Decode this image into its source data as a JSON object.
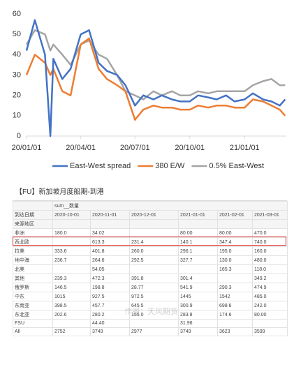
{
  "chart_data": {
    "type": "line",
    "x": [
      "2020-01-01",
      "2020-01-15",
      "2020-02-01",
      "2020-02-10",
      "2020-02-15",
      "2020-03-01",
      "2020-03-15",
      "2020-04-01",
      "2020-04-15",
      "2020-05-01",
      "2020-05-15",
      "2020-06-01",
      "2020-06-15",
      "2020-07-01",
      "2020-07-15",
      "2020-08-01",
      "2020-08-15",
      "2020-09-01",
      "2020-09-15",
      "2020-10-01",
      "2020-10-15",
      "2020-11-01",
      "2020-11-15",
      "2020-12-01",
      "2020-12-15",
      "2021-01-01",
      "2021-01-15",
      "2021-02-01",
      "2021-02-15",
      "2021-03-01",
      "2021-03-10"
    ],
    "series": [
      {
        "name": "East-West spread",
        "color": "#4472c4",
        "values": [
          42,
          57,
          40,
          0,
          38,
          28,
          33,
          50,
          52,
          36,
          32,
          30,
          25,
          15,
          20,
          18,
          20,
          18,
          17,
          17,
          20,
          19,
          18,
          20,
          17,
          18,
          21,
          18,
          17,
          15,
          18
        ]
      },
      {
        "name": "380 E/W",
        "color": "#ed7d31",
        "values": [
          30,
          40,
          36,
          30,
          33,
          22,
          20,
          45,
          48,
          33,
          28,
          25,
          22,
          8,
          13,
          15,
          14,
          14,
          13,
          13,
          15,
          14,
          15,
          15,
          14,
          14,
          18,
          17,
          15,
          13,
          10
        ]
      },
      {
        "name": "0.5% East-West",
        "color": "#a5a5a5",
        "values": [
          45,
          52,
          50,
          42,
          45,
          40,
          35,
          45,
          47,
          40,
          38,
          30,
          22,
          20,
          18,
          22,
          20,
          22,
          20,
          20,
          22,
          21,
          22,
          22,
          22,
          22,
          25,
          27,
          28,
          25,
          25
        ]
      }
    ],
    "xlim": [
      "2020-01-01",
      "2021-03-12"
    ],
    "xticks": [
      {
        "value": "2020-01-01",
        "label": "20/01/01"
      },
      {
        "value": "2020-04-01",
        "label": "20/04/01"
      },
      {
        "value": "2020-07-01",
        "label": "20/07/01"
      },
      {
        "value": "2020-10-01",
        "label": "20/10/01"
      },
      {
        "value": "2021-01-01",
        "label": "21/01/01"
      }
    ],
    "ylim": [
      0,
      60
    ],
    "yticks": [
      0,
      10,
      20,
      30,
      40,
      50,
      60
    ],
    "legend": "bottom"
  },
  "table": {
    "title": "【FU】新加坡月度船期-到港",
    "measure": "sum__数量",
    "date_header": "到达日期",
    "region_header": "来源地区",
    "watermark": "作图：天风期货",
    "columns": [
      "2020-10-01",
      "2020-11-01",
      "2020-12-01",
      "2021-01-01",
      "2021-02-01",
      "2021-03-01"
    ],
    "rows": [
      {
        "label": "非洲",
        "cells": [
          "180.0",
          "34.02",
          null,
          "80.00",
          "80.00",
          "470.0"
        ]
      },
      {
        "label": "西北欧",
        "cells": [
          null,
          "613.3",
          "231.4",
          "140.1",
          "347.4",
          "740.0"
        ]
      },
      {
        "label": "拉美",
        "cells": [
          "333.6",
          "401.8",
          "260.0",
          "296.1",
          "195.0",
          "160.0"
        ]
      },
      {
        "label": "地中海",
        "cells": [
          "236.7",
          "264.6",
          "292.5",
          "327.7",
          "130.0",
          "480.0"
        ]
      },
      {
        "label": "北美",
        "cells": [
          null,
          "54.05",
          null,
          null,
          "165.3",
          "118.0"
        ]
      },
      {
        "label": "其他",
        "cells": [
          "239.3",
          "472.3",
          "391.8",
          "301.4",
          null,
          "349.2"
        ]
      },
      {
        "label": "俄罗斯",
        "cells": [
          "146.5",
          "198.8",
          "28.77",
          "541.9",
          "290.3",
          "474.9"
        ]
      },
      {
        "label": "中东",
        "cells": [
          "1015",
          "927.5",
          "972.5",
          "1445",
          "1542",
          "485.0"
        ]
      },
      {
        "label": "东南亚",
        "cells": [
          "398.5",
          "457.7",
          "645.5",
          "300.9",
          "698.6",
          "242.0"
        ]
      },
      {
        "label": "东北亚",
        "cells": [
          "202.6",
          "280.2",
          "155.0",
          "283.8",
          "174.6",
          "80.00"
        ]
      },
      {
        "label": "FSU",
        "cells": [
          null,
          "44.40",
          null,
          "31.96",
          null,
          null
        ]
      },
      {
        "label": "All",
        "cells": [
          "2752",
          "3749",
          "2977",
          "3749",
          "3623",
          "3599"
        ]
      }
    ]
  }
}
